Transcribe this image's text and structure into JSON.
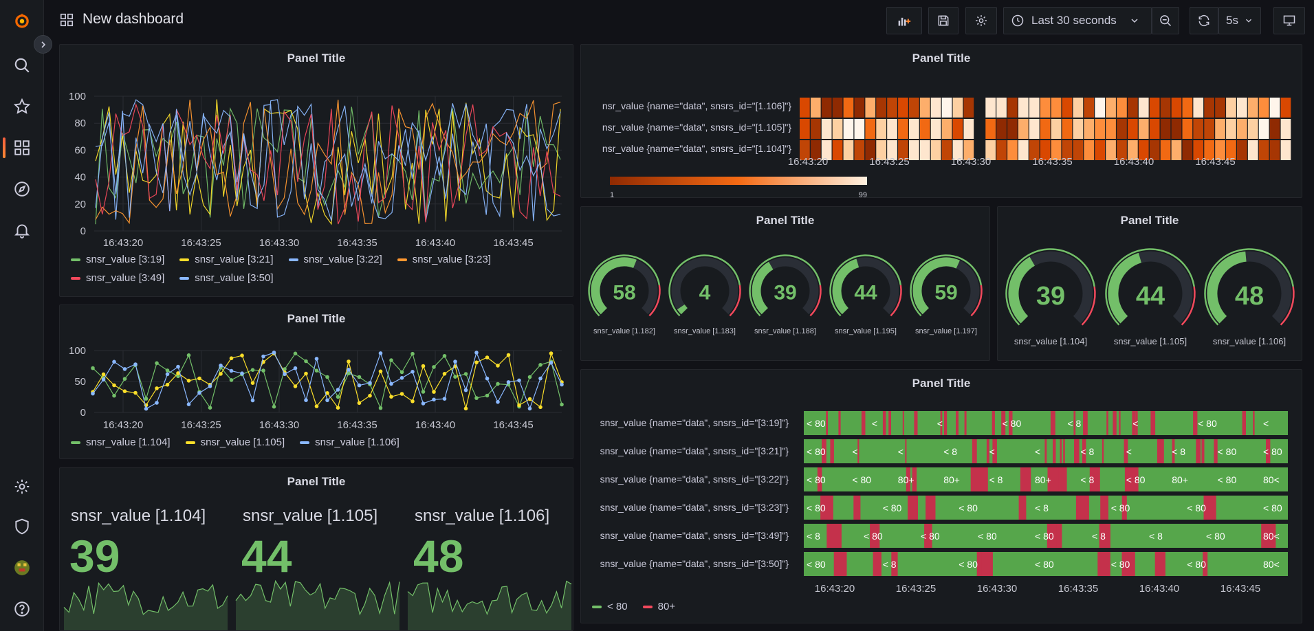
{
  "topbar": {
    "title": "New dashboard",
    "time_range": "Last 30 seconds",
    "refresh_interval": "5s"
  },
  "time_ticks": [
    "16:43:20",
    "16:43:25",
    "16:43:30",
    "16:43:35",
    "16:43:40",
    "16:43:45"
  ],
  "colors": {
    "green": "#73bf69",
    "yellow": "#fade2a",
    "blue": "#8ab8ff",
    "orange": "#ff9830",
    "red": "#f2495c",
    "heat_dark": "#8f2a02",
    "heat_light": "#fff1e0",
    "state_green": "#56a64b",
    "state_red": "#c4314b"
  },
  "panels": {
    "p1": {
      "title": "Panel Title",
      "y_ticks": [
        "0",
        "20",
        "40",
        "60",
        "80",
        "100"
      ],
      "legend": [
        "snsr_value [3:19]",
        "snsr_value [3:21]",
        "snsr_value [3:22]",
        "snsr_value [3:23]",
        "snsr_value [3:49]",
        "snsr_value [3:50]"
      ]
    },
    "p2": {
      "title": "Panel Title",
      "rows": [
        "nsr_value {name=\"data\", snsrs_id=\"[1.106]\"}",
        "nsr_value {name=\"data\", snsrs_id=\"[1.105]\"}",
        "nsr_value {name=\"data\", snsrs_id=\"[1.104]\"}"
      ],
      "scale_min": "1",
      "scale_max": "99"
    },
    "p3": {
      "title": "Panel Title",
      "y_ticks": [
        "0",
        "50",
        "100"
      ],
      "legend": [
        "snsr_value [1.104]",
        "snsr_value [1.105]",
        "snsr_value [1.106]"
      ]
    },
    "p4": {
      "title": "Panel Title",
      "gauges": [
        {
          "value": "58",
          "label": "snsr_value [1.182]"
        },
        {
          "value": "4",
          "label": "snsr_value [1.183]"
        },
        {
          "value": "39",
          "label": "snsr_value [1.188]"
        },
        {
          "value": "44",
          "label": "snsr_value [1.195]"
        },
        {
          "value": "59",
          "label": "snsr_value [1.197]"
        }
      ]
    },
    "p5": {
      "title": "Panel Title",
      "gauges": [
        {
          "value": "39",
          "label": "snsr_value [1.104]"
        },
        {
          "value": "44",
          "label": "snsr_value [1.105]"
        },
        {
          "value": "48",
          "label": "snsr_value [1.106]"
        }
      ]
    },
    "p6": {
      "title": "Panel Title",
      "stats": [
        {
          "name": "snsr_value [1.104]",
          "value": "39"
        },
        {
          "name": "snsr_value [1.105]",
          "value": "44"
        },
        {
          "name": "snsr_value [1.106]",
          "value": "48"
        }
      ]
    },
    "p7": {
      "title": "Panel Title",
      "rows": [
        "snsr_value {name=\"data\", snsrs_id=\"[3:19]\"}",
        "snsr_value {name=\"data\", snsrs_id=\"[3:21]\"}",
        "snsr_value {name=\"data\", snsrs_id=\"[3:22]\"}",
        "snsr_value {name=\"data\", snsrs_id=\"[3:23]\"}",
        "snsr_value {name=\"data\", snsrs_id=\"[3:49]\"}",
        "snsr_value {name=\"data\", snsrs_id=\"[3:50]\"}"
      ],
      "legend": [
        "< 80",
        "80+"
      ],
      "row_marks": [
        [
          "< 80",
          "<",
          "<",
          "< 80",
          "< 8",
          "<",
          "< 80",
          "<"
        ],
        [
          "< 80",
          "<",
          "<",
          "< 8",
          "<",
          "<",
          "< 8",
          "<",
          "< 8",
          "< 80",
          "< 80"
        ],
        [
          "< 80",
          "< 80",
          "80+",
          "80+",
          "< 8",
          "80+",
          "< 8",
          "< 80",
          "80+",
          "< 80",
          "80<"
        ],
        [
          "< 80",
          "< 80",
          "< 80",
          "< 8",
          "< 80",
          "< 80",
          "< 80"
        ],
        [
          "< 8",
          "< 80",
          "< 80",
          "< 80",
          "< 80",
          "< 8",
          "< 8",
          "< 80",
          "80<"
        ],
        [
          "< 80",
          "< 8",
          "< 80",
          "< 80",
          "< 80",
          "< 80",
          "80<"
        ]
      ]
    }
  }
}
